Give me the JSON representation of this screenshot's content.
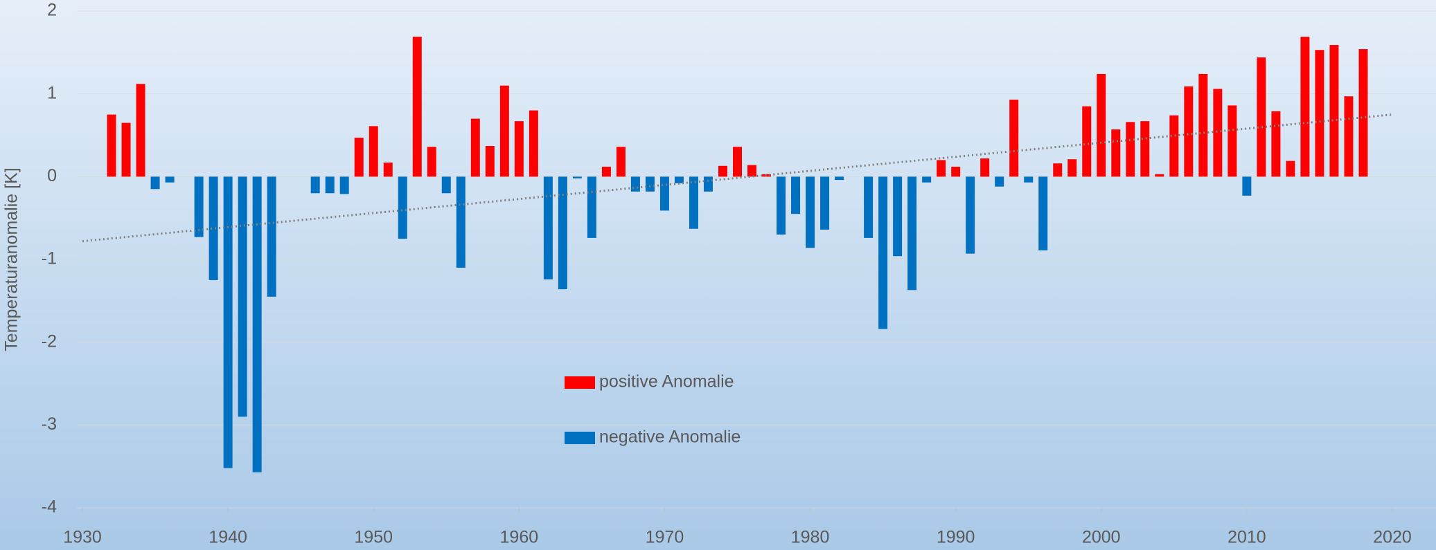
{
  "chart_data": {
    "type": "bar",
    "y_label": "Temperaturanomalie [K]",
    "x": [
      1932,
      1933,
      1934,
      1935,
      1936,
      1938,
      1939,
      1940,
      1941,
      1942,
      1943,
      1946,
      1947,
      1948,
      1949,
      1950,
      1951,
      1952,
      1953,
      1954,
      1955,
      1956,
      1957,
      1958,
      1959,
      1960,
      1961,
      1962,
      1963,
      1964,
      1965,
      1966,
      1967,
      1968,
      1969,
      1970,
      1971,
      1972,
      1973,
      1974,
      1975,
      1976,
      1977,
      1978,
      1979,
      1980,
      1981,
      1982,
      1984,
      1985,
      1986,
      1987,
      1988,
      1989,
      1990,
      1991,
      1992,
      1993,
      1994,
      1995,
      1996,
      1997,
      1998,
      1999,
      2000,
      2001,
      2002,
      2003,
      2004,
      2005,
      2006,
      2007,
      2008,
      2009,
      2010,
      2011,
      2012,
      2013,
      2014,
      2015,
      2016,
      2017,
      2018
    ],
    "series": [
      {
        "name": "positive Anomalie",
        "color": "#ff0000",
        "values": [
          0.75,
          0.65,
          1.12,
          null,
          null,
          null,
          null,
          null,
          null,
          null,
          null,
          null,
          null,
          null,
          0.47,
          0.61,
          0.17,
          null,
          1.69,
          0.36,
          null,
          null,
          0.7,
          0.37,
          1.1,
          0.67,
          0.8,
          null,
          null,
          null,
          null,
          0.12,
          0.36,
          null,
          null,
          null,
          null,
          null,
          null,
          0.13,
          0.36,
          0.14,
          0.03,
          null,
          null,
          null,
          null,
          null,
          null,
          null,
          null,
          null,
          null,
          0.2,
          0.12,
          null,
          0.22,
          null,
          0.93,
          null,
          null,
          0.16,
          0.21,
          0.85,
          1.24,
          0.57,
          0.66,
          0.67,
          0.03,
          0.74,
          1.09,
          1.24,
          1.06,
          0.86,
          null,
          1.44,
          0.79,
          0.19,
          1.69,
          1.53,
          1.59,
          0.97,
          1.54
        ]
      },
      {
        "name": "negative Anomalie",
        "color": "#0070c0",
        "values": [
          null,
          null,
          null,
          -0.15,
          -0.07,
          -0.73,
          -1.25,
          -3.52,
          -2.9,
          -3.57,
          -1.45,
          -0.2,
          -0.2,
          -0.21,
          null,
          null,
          null,
          -0.75,
          null,
          null,
          -0.2,
          -1.1,
          null,
          null,
          null,
          null,
          null,
          -1.24,
          -1.36,
          -0.02,
          -0.74,
          null,
          null,
          -0.18,
          -0.18,
          -0.41,
          -0.08,
          -0.63,
          -0.18,
          null,
          null,
          null,
          null,
          -0.7,
          -0.45,
          -0.86,
          -0.64,
          -0.04,
          -0.74,
          -1.84,
          -0.96,
          -1.37,
          -0.07,
          null,
          null,
          -0.93,
          null,
          -0.12,
          null,
          -0.07,
          -0.89,
          null,
          null,
          null,
          null,
          null,
          null,
          null,
          null,
          null,
          null,
          null,
          null,
          null,
          -0.23,
          null,
          null,
          null,
          null,
          null,
          null,
          null,
          null
        ]
      }
    ],
    "trendline": {
      "x": [
        1930,
        2020
      ],
      "values": [
        -0.78,
        0.75
      ],
      "color": "#808080"
    },
    "xlim": [
      1930,
      2020
    ],
    "xticks": [
      1930,
      1940,
      1950,
      1960,
      1970,
      1980,
      1990,
      2000,
      2010,
      2020
    ],
    "ylim": [
      -4,
      2
    ],
    "yticks": [
      -4,
      -3,
      -2,
      -1,
      0,
      1,
      2
    ],
    "grid": true
  }
}
